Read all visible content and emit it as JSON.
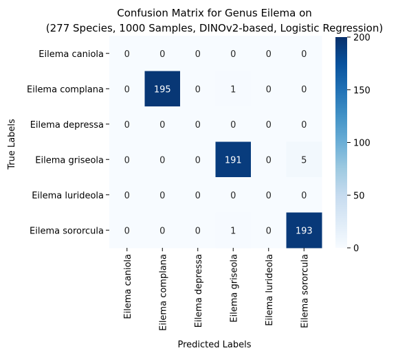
{
  "chart_data": {
    "type": "heatmap",
    "title_line1": "Confusion Matrix for Genus Eilema on",
    "title_line2": "(277 Species, 1000 Samples, DINOv2-based, Logistic Regression)",
    "xlabel": "Predicted Labels",
    "ylabel": "True Labels",
    "row_labels": [
      "Eilema caniola",
      "Eilema complana",
      "Eilema depressa",
      "Eilema griseola",
      "Eilema lurideola",
      "Eilema sororcula"
    ],
    "col_labels": [
      "Eilema caniola",
      "Eilema complana",
      "Eilema depressa",
      "Eilema griseola",
      "Eilema lurideola",
      "Eilema sororcula"
    ],
    "values": [
      [
        0,
        0,
        0,
        0,
        0,
        0
      ],
      [
        0,
        195,
        0,
        1,
        0,
        0
      ],
      [
        0,
        0,
        0,
        0,
        0,
        0
      ],
      [
        0,
        0,
        0,
        191,
        0,
        5
      ],
      [
        0,
        0,
        0,
        0,
        0,
        0
      ],
      [
        0,
        0,
        0,
        1,
        0,
        193
      ]
    ],
    "colorbar": {
      "min": 0,
      "max": 200,
      "ticks": [
        0,
        50,
        100,
        150,
        200
      ],
      "colormap": "Blues",
      "low_color": "#f7fbff",
      "high_color": "#08306b"
    },
    "grid": false
  }
}
